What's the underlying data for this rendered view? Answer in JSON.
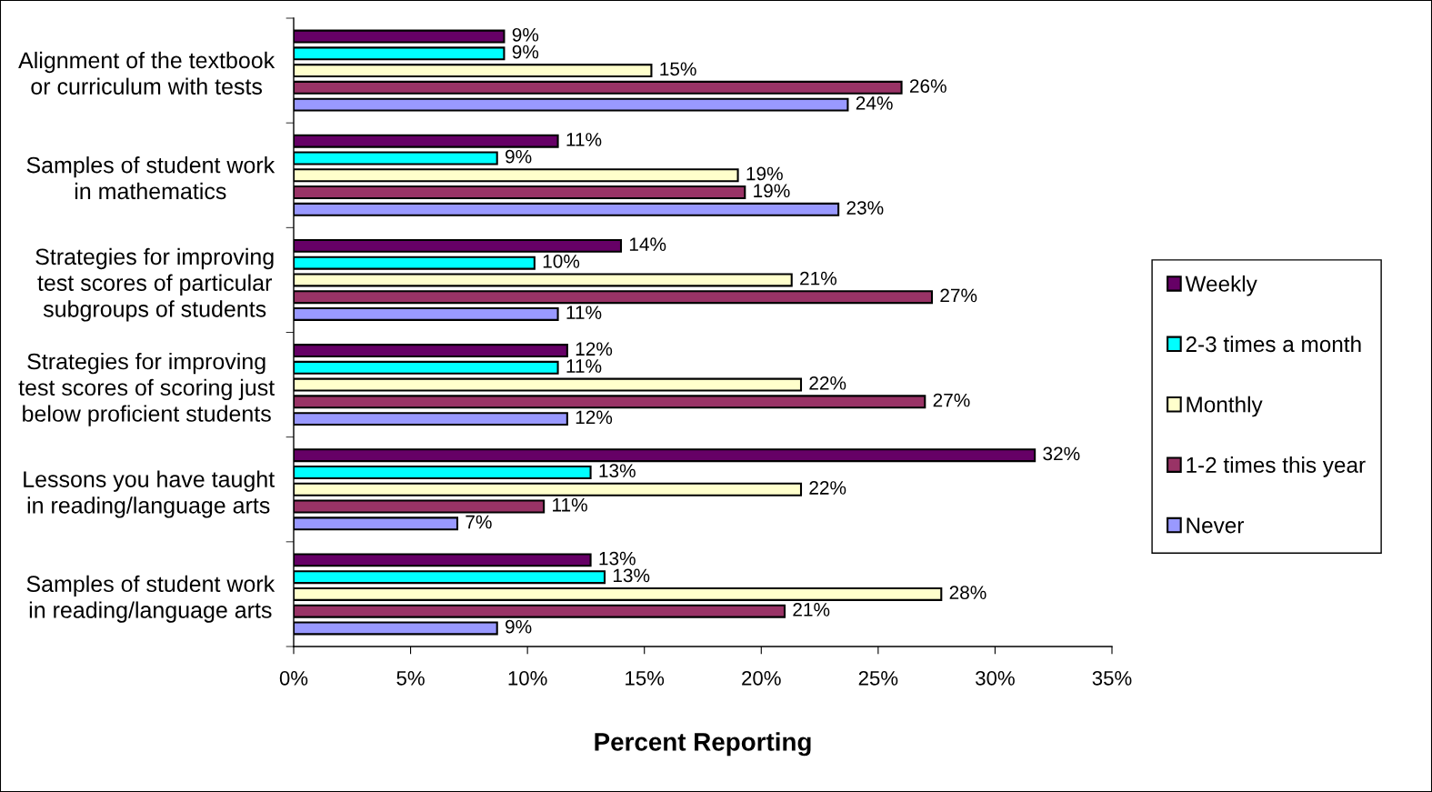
{
  "chart_data": {
    "type": "bar",
    "orientation": "horizontal",
    "xlabel": "Percent Reporting",
    "categories": [
      "Alignment of the textbook\nor curriculum with tests",
      "Samples of student work\nin mathematics",
      "Strategies for improving\ntest scores of particular\nsubgroups of students",
      "Strategies for improving\ntest scores of scoring just\nbelow proficient students",
      "Lessons you have taught\nin reading/language arts",
      "Samples of student work\nin reading/language arts"
    ],
    "series": [
      {
        "name": "Weekly",
        "color": "#660066",
        "values": [
          9.0,
          11.3,
          14.0,
          11.7,
          31.7,
          12.7
        ],
        "value_labels": [
          "9%",
          "11%",
          "14%",
          "12%",
          "32%",
          "13%"
        ]
      },
      {
        "name": "2-3 times a month",
        "color": "#00ffff",
        "values": [
          9.0,
          8.7,
          10.3,
          11.3,
          12.7,
          13.3
        ],
        "value_labels": [
          "9%",
          "9%",
          "10%",
          "11%",
          "13%",
          "13%"
        ]
      },
      {
        "name": "Monthly",
        "color": "#ffffcc",
        "values": [
          15.3,
          19.0,
          21.3,
          21.7,
          21.7,
          27.7
        ],
        "value_labels": [
          "15%",
          "19%",
          "21%",
          "22%",
          "22%",
          "28%"
        ]
      },
      {
        "name": "1-2 times this year",
        "color": "#993366",
        "values": [
          26.0,
          19.3,
          27.3,
          27.0,
          10.7,
          21.0
        ],
        "value_labels": [
          "26%",
          "19%",
          "27%",
          "27%",
          "11%",
          "21%"
        ]
      },
      {
        "name": "Never",
        "color": "#9999ff",
        "values": [
          23.7,
          23.3,
          11.3,
          11.7,
          7.0,
          8.7
        ],
        "value_labels": [
          "24%",
          "23%",
          "11%",
          "12%",
          "7%",
          "9%"
        ]
      }
    ],
    "xlim": [
      0,
      35
    ],
    "xticks": [
      {
        "value": 0,
        "label": "0%"
      },
      {
        "value": 5,
        "label": "5%"
      },
      {
        "value": 10,
        "label": "10%"
      },
      {
        "value": 15,
        "label": "15%"
      },
      {
        "value": 20,
        "label": "20%"
      },
      {
        "value": 25,
        "label": "25%"
      },
      {
        "value": 30,
        "label": "30%"
      },
      {
        "value": 35,
        "label": "35%"
      }
    ],
    "grid": false,
    "legend": "right"
  }
}
